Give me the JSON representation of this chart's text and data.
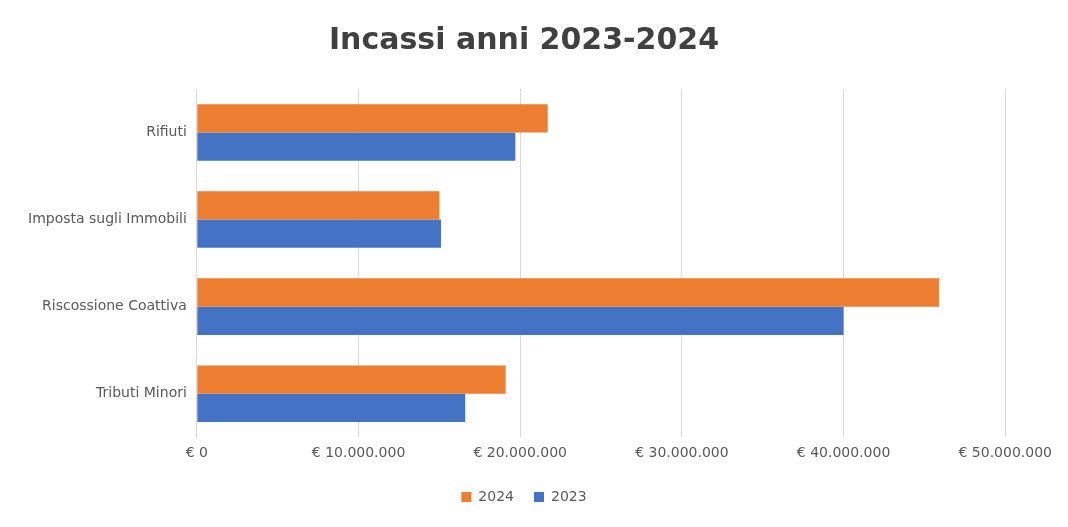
{
  "chart_data": {
    "type": "bar",
    "orientation": "horizontal",
    "title": "Incassi anni 2023-2024",
    "categories": [
      "Rifiuti",
      "Imposta sugli Immobili",
      "Riscossione Coattiva",
      "Tributi Minori"
    ],
    "series": [
      {
        "name": "2024",
        "color": "#ed7d31",
        "values": [
          21700000,
          15000000,
          45900000,
          19100000
        ]
      },
      {
        "name": "2023",
        "color": "#4472c4",
        "values": [
          19700000,
          15100000,
          40000000,
          16600000
        ]
      }
    ],
    "xlim": [
      0,
      50000000
    ],
    "xticks": [
      {
        "value": 0,
        "label": "€ 0"
      },
      {
        "value": 10000000,
        "label": "€ 10.000.000"
      },
      {
        "value": 20000000,
        "label": "€ 20.000.000"
      },
      {
        "value": 30000000,
        "label": "€ 30.000.000"
      },
      {
        "value": 40000000,
        "label": "€ 40.000.000"
      },
      {
        "value": 50000000,
        "label": "€ 50.000.000"
      }
    ],
    "grid": "x",
    "legend": "bottom"
  }
}
